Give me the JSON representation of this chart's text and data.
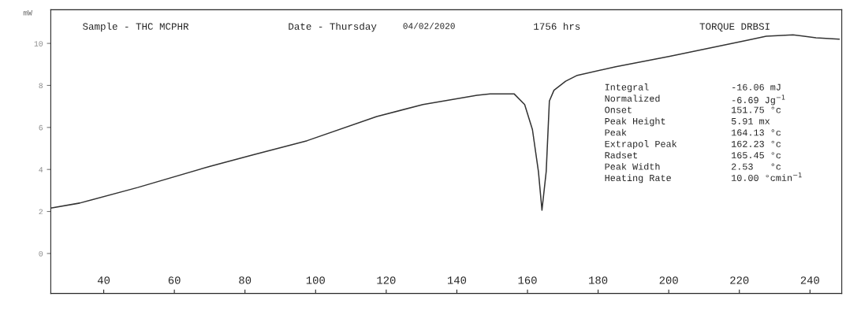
{
  "chart_data": {
    "type": "line",
    "ylabel": "mW",
    "annotations": [
      "Sample - THC MCPHR",
      "Date - Thursday",
      "04/02/2020",
      "1756 hrs",
      "TORQUE DRBSI",
      "Integral",
      "-16.06 mJ",
      "Normalized",
      "-6.69 Jg$^{−1}$",
      "Onset",
      "151.75 °c",
      "Peak Height",
      "5.91 mx",
      "Peak",
      "164.13 °c",
      "Extrapol Peak",
      "162.23 °c",
      "Radset",
      "165.45 °c",
      "Peak Width",
      "2.53   °c",
      "Heating Rate",
      "10.00 °cmin$^{−1}$"
    ],
    "series": [
      {
        "color": "#333333",
        "x": [
          25,
          33.2,
          49.6,
          70.3,
          82.4,
          97.6,
          117.3,
          130.4,
          145.7,
          149.4,
          156.2,
          159.2,
          161.4,
          163.1,
          164.1,
          165.3,
          166.2,
          167.5,
          170.8,
          174.1,
          185.0,
          200.3,
          222.1,
          227.6,
          235.2,
          241.7,
          248.3
        ],
        "values": [
          2.16,
          2.4,
          3.14,
          4.16,
          4.7,
          5.37,
          6.52,
          7.09,
          7.53,
          7.6,
          7.6,
          7.09,
          5.9,
          3.9,
          2.06,
          3.9,
          7.26,
          7.77,
          8.2,
          8.48,
          8.89,
          9.39,
          10.14,
          10.34,
          10.41,
          10.27,
          10.2
        ]
      }
    ],
    "xlim": [
      25,
      249
    ],
    "xticks": [
      40,
      60,
      80,
      100,
      120,
      140,
      160,
      180,
      200,
      220,
      240
    ],
    "ylim": [
      -1.9,
      11.6
    ],
    "yticks": [
      0,
      2,
      4,
      6,
      8,
      10
    ],
    "grid": false,
    "marker": "none",
    "line_style": "solid"
  }
}
